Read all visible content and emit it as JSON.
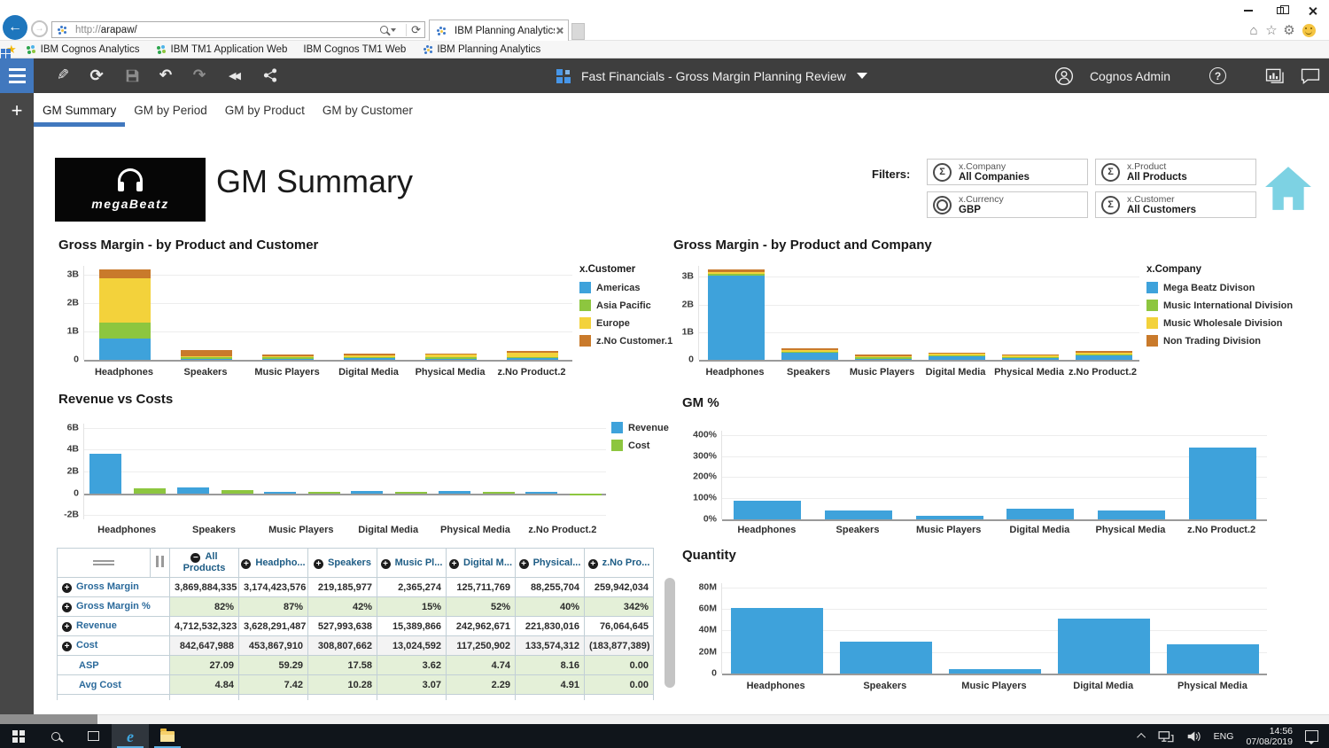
{
  "browser": {
    "url_prefix": "http://",
    "url_host": "arapaw/",
    "tab_title": "IBM Planning Analytics",
    "bookmarks": [
      "IBM Cognos Analytics",
      "IBM TM1 Application Web",
      "IBM Cognos TM1 Web",
      "IBM Planning Analytics"
    ]
  },
  "app_toolbar": {
    "title": "Fast Financials - Gross Margin Planning Review",
    "user": "Cognos Admin"
  },
  "sheet_tabs": {
    "items": [
      "GM Summary",
      "GM by Period",
      "GM by Product",
      "GM by Customer"
    ],
    "active_index": 0
  },
  "page": {
    "title": "GM Summary",
    "logo_text": "megaBeatz",
    "filters_label": "Filters:",
    "filters": [
      {
        "dimension": "x.Company",
        "value": "All Companies",
        "icon": "sigma"
      },
      {
        "dimension": "x.Product",
        "value": "All Products",
        "icon": "sigma"
      },
      {
        "dimension": "x.Currency",
        "value": "GBP",
        "icon": "rings"
      },
      {
        "dimension": "x.Customer",
        "value": "All Customers",
        "icon": "sigma"
      }
    ]
  },
  "colors": {
    "blue": "#3EA2DB",
    "green": "#8DC63F",
    "yellow": "#F3D23B",
    "orange": "#C97A2B",
    "accent": "#4178BE",
    "home": "#7DD2E3"
  },
  "chart_data": [
    {
      "type": "stacked",
      "title": "Gross Margin - by Product and Customer",
      "categories": [
        "Headphones",
        "Speakers",
        "Music Players",
        "Digital Media",
        "Physical Media",
        "z.No Product.2"
      ],
      "unit": "B",
      "ylim": [
        0,
        3.3
      ],
      "ticks": [
        {
          "v": 0,
          "label": "0"
        },
        {
          "v": 1,
          "label": "1B"
        },
        {
          "v": 2,
          "label": "2B"
        },
        {
          "v": 3,
          "label": "3B"
        }
      ],
      "legend_title": "x.Customer",
      "legend_position": "right",
      "series": [
        {
          "name": "Americas",
          "color": "#3EA2DB",
          "values": [
            0.75,
            0.03,
            0.01,
            0.05,
            0.01,
            0.06
          ]
        },
        {
          "name": "Asia Pacific",
          "color": "#8DC63F",
          "values": [
            0.55,
            0.02,
            0.005,
            0.01,
            0.005,
            0.01
          ]
        },
        {
          "name": "Europe",
          "color": "#F3D23B",
          "values": [
            1.55,
            0.04,
            0.02,
            0.07,
            0.09,
            0.13
          ]
        },
        {
          "name": "z.No Customer.1",
          "color": "#C97A2B",
          "values": [
            0.32,
            0.21,
            0.035,
            0.03,
            0.035,
            0.07
          ]
        }
      ]
    },
    {
      "type": "stacked",
      "title": "Gross Margin - by Product and Company",
      "categories": [
        "Headphones",
        "Speakers",
        "Music Players",
        "Digital Media",
        "Physical Media",
        "z.No Product.2"
      ],
      "unit": "B",
      "ylim": [
        0,
        3.4
      ],
      "ticks": [
        {
          "v": 0,
          "label": "0"
        },
        {
          "v": 1,
          "label": "1B"
        },
        {
          "v": 2,
          "label": "2B"
        },
        {
          "v": 3,
          "label": "3B"
        }
      ],
      "legend_title": "x.Company",
      "legend_position": "right",
      "series": [
        {
          "name": "Mega Beatz Divison",
          "color": "#3EA2DB",
          "values": [
            3.05,
            0.25,
            0.02,
            0.12,
            0.05,
            0.15
          ]
        },
        {
          "name": "Music International Division",
          "color": "#8DC63F",
          "values": [
            0.02,
            0.01,
            0.005,
            0.02,
            0.04,
            0.03
          ]
        },
        {
          "name": "Music Wholesale Division",
          "color": "#F3D23B",
          "values": [
            0.08,
            0.03,
            0.01,
            0.03,
            0.04,
            0.03
          ]
        },
        {
          "name": "Non Trading Division",
          "color": "#C97A2B",
          "values": [
            0.1,
            0.07,
            0.035,
            0.01,
            0.005,
            0.09
          ]
        }
      ]
    },
    {
      "type": "grouped",
      "title": "Revenue vs Costs",
      "categories": [
        "Headphones",
        "Speakers",
        "Music Players",
        "Digital Media",
        "Physical Media",
        "z.No Product.2"
      ],
      "unit": "B",
      "ylim": [
        -2.4,
        6.4
      ],
      "ticks": [
        {
          "v": 6,
          "label": "6B"
        },
        {
          "v": 4,
          "label": "4B"
        },
        {
          "v": 2,
          "label": "2B"
        },
        {
          "v": 0,
          "label": "0"
        },
        {
          "v": -2,
          "label": "-2B"
        }
      ],
      "legend_position": "right",
      "series": [
        {
          "name": "Revenue",
          "color": "#3EA2DB",
          "values": [
            3.628,
            0.528,
            0.015,
            0.243,
            0.222,
            0.076
          ]
        },
        {
          "name": "Cost",
          "color": "#8DC63F",
          "values": [
            0.454,
            0.309,
            0.013,
            0.117,
            0.134,
            -0.184
          ]
        }
      ]
    },
    {
      "type": "bar",
      "title": "GM %",
      "categories": [
        "Headphones",
        "Speakers",
        "Music Players",
        "Digital Media",
        "Physical Media",
        "z.No Product.2"
      ],
      "unit": "%",
      "ylim": [
        0,
        420
      ],
      "ticks": [
        {
          "v": 400,
          "label": "400%"
        },
        {
          "v": 300,
          "label": "300%"
        },
        {
          "v": 200,
          "label": "200%"
        },
        {
          "v": 100,
          "label": "100%"
        },
        {
          "v": 0,
          "label": "0%"
        }
      ],
      "color": "#3EA2DB",
      "values": [
        87,
        42,
        15,
        52,
        40,
        342
      ]
    },
    {
      "type": "bar",
      "title": "Quantity",
      "categories": [
        "Headphones",
        "Speakers",
        "Music Players",
        "Digital Media",
        "Physical Media"
      ],
      "unit": "M",
      "ylim": [
        0,
        84
      ],
      "ticks": [
        {
          "v": 80,
          "label": "80M"
        },
        {
          "v": 60,
          "label": "60M"
        },
        {
          "v": 40,
          "label": "40M"
        },
        {
          "v": 20,
          "label": "20M"
        },
        {
          "v": 0,
          "label": "0"
        }
      ],
      "color": "#3EA2DB",
      "values": [
        61,
        30,
        4.5,
        51,
        27
      ]
    }
  ],
  "table": {
    "columns": [
      {
        "icon": "minus",
        "label": "All Products"
      },
      {
        "icon": "plus",
        "label": "Headpho..."
      },
      {
        "icon": "plus",
        "label": "Speakers"
      },
      {
        "icon": "plus",
        "label": "Music Pl..."
      },
      {
        "icon": "plus",
        "label": "Digital M..."
      },
      {
        "icon": "plus",
        "label": "Physical..."
      },
      {
        "icon": "plus",
        "label": "z.No Pro..."
      }
    ],
    "rows": [
      {
        "label": "Gross Margin",
        "icon": "plus",
        "bg": "plain",
        "values": [
          "3,869,884,335",
          "3,174,423,576",
          "219,185,977",
          "2,365,274",
          "125,711,769",
          "88,255,704",
          "259,942,034"
        ]
      },
      {
        "label": "Gross Margin %",
        "icon": "plus",
        "bg": "green",
        "values": [
          "82%",
          "87%",
          "42%",
          "15%",
          "52%",
          "40%",
          "342%"
        ]
      },
      {
        "label": "Revenue",
        "icon": "plus",
        "bg": "plain",
        "values": [
          "4,712,532,323",
          "3,628,291,487",
          "527,993,638",
          "15,389,866",
          "242,962,671",
          "221,830,016",
          "76,064,645"
        ]
      },
      {
        "label": "Cost",
        "icon": "plus",
        "bg": "gray",
        "values": [
          "842,647,988",
          "453,867,910",
          "308,807,662",
          "13,024,592",
          "117,250,902",
          "133,574,312",
          "(183,877,389)"
        ]
      },
      {
        "label": "ASP",
        "icon": null,
        "bg": "green",
        "values": [
          "27.09",
          "59.29",
          "17.58",
          "3.62",
          "4.74",
          "8.16",
          "0.00"
        ]
      },
      {
        "label": "Avg Cost",
        "icon": null,
        "bg": "green",
        "values": [
          "4.84",
          "7.42",
          "10.28",
          "3.07",
          "2.29",
          "4.91",
          "0.00"
        ]
      }
    ]
  },
  "taskbar": {
    "language": "ENG",
    "time": "14:56",
    "date": "07/08/2019"
  }
}
